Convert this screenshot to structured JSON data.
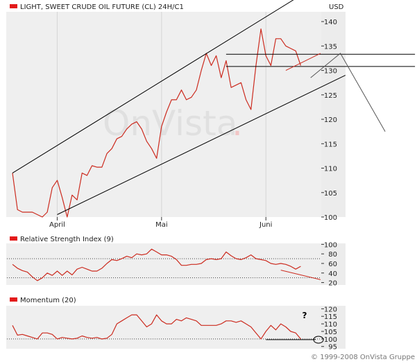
{
  "colors": {
    "panel_bg": "#efefef",
    "series_red": "#cc2b1f",
    "channel_black": "#000000",
    "axis_text": "#222222",
    "watermark": "#e3e3e3",
    "legend_red": "#e31a1a",
    "footer_text": "#777777"
  },
  "watermark_text": "OnVista",
  "watermark_dot": ".",
  "footer": "© 1999-2008 OnVista Gruppe",
  "chart_data": [
    {
      "type": "line",
      "title": "LIGHT, SWEET CRUDE OIL FUTURE (CL) 24H/C1",
      "unit": "USD",
      "yticks": [
        100,
        105,
        110,
        115,
        120,
        125,
        130,
        135,
        140
      ],
      "ylim": [
        100,
        142
      ],
      "x_range": [
        0,
        62
      ],
      "xticks": [
        {
          "x": 9,
          "label": "April"
        },
        {
          "x": 30,
          "label": "Mai"
        },
        {
          "x": 51,
          "label": "Juni"
        }
      ],
      "values": [
        109,
        101.5,
        101,
        101,
        101,
        100.5,
        100,
        101,
        106,
        107.5,
        104,
        100,
        104.5,
        103.5,
        109,
        108.5,
        110.5,
        110.2,
        110.2,
        113,
        114,
        116,
        116.5,
        118,
        119,
        119.5,
        118,
        115.5,
        114,
        112,
        118.5,
        121.5,
        124,
        124,
        126,
        124,
        124.5,
        126,
        130,
        133.5,
        131,
        133,
        128.5,
        132,
        126.5,
        127,
        127.5,
        124,
        122,
        131,
        138.5,
        133,
        131,
        136.5,
        136.5,
        135,
        134.5,
        134,
        131
      ],
      "annotations": {
        "channel_upper": [
          [
            0,
            109
          ],
          [
            67,
            151
          ]
        ],
        "channel_lower": [
          [
            9,
            100.5
          ],
          [
            67,
            129
          ]
        ],
        "hline_upper": [
          [
            43,
            133.3
          ],
          [
            81,
            133.3
          ]
        ],
        "hline_lower": [
          [
            43,
            130.8
          ],
          [
            81,
            130.8
          ]
        ],
        "trend_red": [
          [
            55,
            130
          ],
          [
            62,
            133.5
          ]
        ],
        "projection": [
          [
            60,
            128.5
          ],
          [
            66,
            133.5
          ],
          [
            75,
            117.5
          ]
        ]
      }
    },
    {
      "type": "line",
      "title": "Relative Strength Index (9)",
      "yticks": [
        20,
        40,
        60,
        80,
        100
      ],
      "ylim": [
        15,
        102
      ],
      "x_range": [
        0,
        62
      ],
      "reference_lines": [
        30,
        70
      ],
      "values": [
        58,
        50,
        45,
        42,
        32,
        24,
        30,
        40,
        35,
        44,
        35,
        44,
        36,
        48,
        52,
        48,
        44,
        44,
        50,
        60,
        68,
        66,
        70,
        75,
        72,
        80,
        78,
        80,
        90,
        84,
        78,
        78,
        75,
        68,
        56,
        56,
        58,
        58,
        60,
        68,
        70,
        68,
        70,
        84,
        76,
        70,
        68,
        72,
        78,
        70,
        68,
        66,
        60,
        58,
        60,
        58,
        54,
        48,
        54
      ],
      "annotations": {
        "trend_red": [
          [
            54,
            46
          ],
          [
            62,
            26
          ]
        ]
      }
    },
    {
      "type": "line",
      "title": "Momentum (20)",
      "yticks": [
        95,
        100,
        105,
        110,
        115,
        120
      ],
      "ylim": [
        93.5,
        122
      ],
      "x_range": [
        0,
        62
      ],
      "reference_lines": [
        100
      ],
      "values": [
        109,
        102.5,
        103,
        102,
        101,
        100,
        104,
        104,
        103,
        100,
        101,
        100.5,
        100,
        100.5,
        102,
        101,
        100.5,
        101,
        100,
        100.5,
        103,
        110,
        112,
        114,
        116,
        116,
        112,
        108,
        110,
        116,
        112,
        110,
        110,
        113,
        112,
        114,
        113,
        112,
        109,
        109,
        109,
        109,
        110,
        112,
        112,
        111,
        112,
        110,
        108,
        104,
        100,
        105,
        109,
        106,
        110,
        108,
        105,
        104,
        100
      ],
      "annotations": {
        "flat_line": [
          [
            51,
            99.5
          ],
          [
            61,
            99.5
          ]
        ]
      },
      "marker_text": "?"
    }
  ]
}
